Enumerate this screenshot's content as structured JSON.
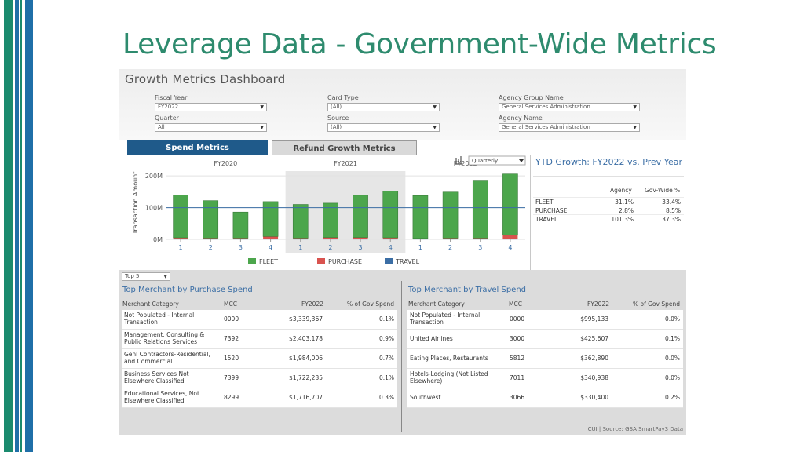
{
  "slide": {
    "title": "Leverage Data - Government-Wide Metrics"
  },
  "colors": {
    "stripe_teal": "#1a8a6e",
    "stripe_blue": "#1f6fa8",
    "title": "#2e8b6e",
    "fleet": "#4ca64c",
    "purchase": "#d9534f",
    "travel": "#3b6ea5"
  },
  "dashboard": {
    "title": "Growth Metrics Dashboard",
    "filters": {
      "fiscal_year": {
        "label": "Fiscal Year",
        "value": "FY2022"
      },
      "quarter": {
        "label": "Quarter",
        "value": "All"
      },
      "card_type": {
        "label": "Card Type",
        "value": "(All)"
      },
      "source": {
        "label": "Source",
        "value": "(All)"
      },
      "agency_group_name": {
        "label": "Agency Group Name",
        "value": "General Services Administration"
      },
      "agency_name": {
        "label": "Agency Name",
        "value": "General Services Administration"
      }
    },
    "tabs": {
      "spend": "Spend Metrics",
      "refund": "Refund Growth Metrics"
    },
    "period_select": "Quarterly",
    "ytd": {
      "title": "YTD Growth: FY2022 vs. Prev Year",
      "col_agency": "Agency",
      "col_govwide": "Gov-Wide %",
      "rows": [
        {
          "label": "FLEET",
          "agency": "31.1%",
          "govwide": "33.4%"
        },
        {
          "label": "PURCHASE",
          "agency": "2.8%",
          "govwide": "8.5%"
        },
        {
          "label": "TRAVEL",
          "agency": "101.3%",
          "govwide": "37.3%"
        }
      ]
    },
    "top_select": "Top 5",
    "purchase_table": {
      "title": "Top Merchant by Purchase Spend",
      "headers": {
        "category": "Merchant Category",
        "mcc": "MCC",
        "fy": "FY2022",
        "pct": "% of Gov Spend"
      },
      "rows": [
        {
          "category_1": "Not Populated - Internal",
          "category_2": "Transaction",
          "mcc": "0000",
          "fy": "$3,339,367",
          "pct": "0.1%"
        },
        {
          "category_1": "Management, Consulting &",
          "category_2": "Public Relations Services",
          "mcc": "7392",
          "fy": "$2,403,178",
          "pct": "0.9%"
        },
        {
          "category_1": "Genl Contractors-Residential,",
          "category_2": "and Commercial",
          "mcc": "1520",
          "fy": "$1,984,006",
          "pct": "0.7%"
        },
        {
          "category_1": "Business Services Not",
          "category_2": "Elsewhere Classified",
          "mcc": "7399",
          "fy": "$1,722,235",
          "pct": "0.1%"
        },
        {
          "category_1": "Educational Services, Not",
          "category_2": "Elsewhere Classified",
          "mcc": "8299",
          "fy": "$1,716,707",
          "pct": "0.3%"
        }
      ]
    },
    "travel_table": {
      "title": "Top Merchant by Travel Spend",
      "headers": {
        "category": "Merchant Category",
        "mcc": "MCC",
        "fy": "FY2022",
        "pct": "% of Gov Spend"
      },
      "rows": [
        {
          "category_1": "Not Populated - Internal",
          "category_2": "Transaction",
          "mcc": "0000",
          "fy": "$995,133",
          "pct": "0.0%"
        },
        {
          "category_1": "United Airlines",
          "category_2": "",
          "mcc": "3000",
          "fy": "$425,607",
          "pct": "0.1%"
        },
        {
          "category_1": "Eating Places, Restaurants",
          "category_2": "",
          "mcc": "5812",
          "fy": "$362,890",
          "pct": "0.0%"
        },
        {
          "category_1": "Hotels-Lodging (Not Listed",
          "category_2": "Elsewhere)",
          "mcc": "7011",
          "fy": "$340,938",
          "pct": "0.0%"
        },
        {
          "category_1": "Southwest",
          "category_2": "",
          "mcc": "3066",
          "fy": "$330,400",
          "pct": "0.2%"
        }
      ]
    },
    "source_note": "CUI | Source: GSA SmartPay3 Data"
  },
  "chart_data": {
    "type": "bar",
    "stacked": true,
    "ylabel": "Transaction Amount",
    "ylim": [
      0,
      230
    ],
    "yticks": [
      {
        "value": 0,
        "label": "0M"
      },
      {
        "value": 100,
        "label": "100M"
      },
      {
        "value": 200,
        "label": "200M"
      }
    ],
    "groups": [
      "FY2020",
      "FY2021",
      "FY2022"
    ],
    "categories": [
      "1",
      "2",
      "3",
      "4",
      "1",
      "2",
      "3",
      "4",
      "1",
      "2",
      "3",
      "4"
    ],
    "category_groups": [
      0,
      0,
      0,
      0,
      1,
      1,
      1,
      1,
      2,
      2,
      2,
      2
    ],
    "highlighted_group": 1,
    "reference_line": 100,
    "legend": [
      "FLEET",
      "PURCHASE",
      "TRAVEL"
    ],
    "series": [
      {
        "name": "FLEET",
        "color": "#4ca64c",
        "values": [
          135,
          118,
          82,
          110,
          106,
          108,
          133,
          147,
          135,
          145,
          180,
          193
        ]
      },
      {
        "name": "PURCHASE",
        "color": "#d9534f",
        "values": [
          4,
          3,
          3,
          8,
          3,
          5,
          5,
          4,
          2,
          3,
          3,
          12
        ]
      },
      {
        "name": "TRAVEL",
        "color": "#3b6ea5",
        "values": [
          1,
          1,
          1,
          1,
          1,
          1,
          1,
          1,
          1,
          1,
          1,
          1
        ]
      }
    ]
  }
}
